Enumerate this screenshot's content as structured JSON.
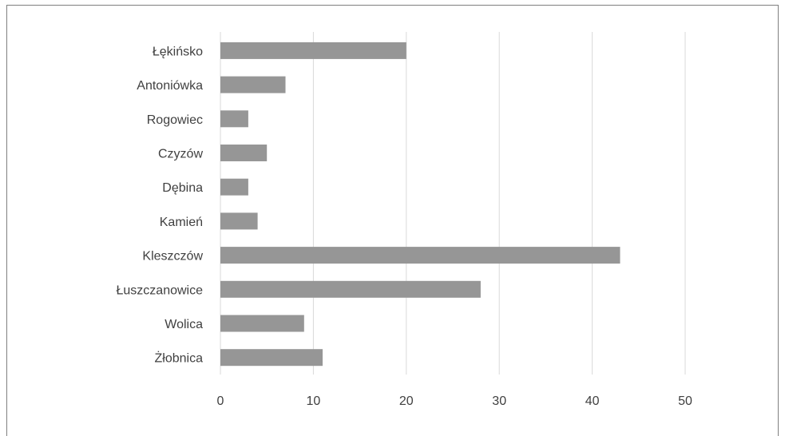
{
  "chart_data": {
    "type": "bar",
    "orientation": "horizontal",
    "categories": [
      "Łękińsko",
      "Antoniówka",
      "Rogowiec",
      "Czyzów",
      "Dębina",
      "Kamień",
      "Kleszczów",
      "Łuszczanowice",
      "Wolica",
      "Żłobnica"
    ],
    "values": [
      20,
      7,
      3,
      5,
      3,
      4,
      43,
      28,
      9,
      11
    ],
    "xlim": [
      0,
      50
    ],
    "xticks": [
      "0",
      "10",
      "20",
      "30",
      "40",
      "50"
    ],
    "grid": true,
    "bar_color": "#969696",
    "grid_color": "#d9d9d9"
  }
}
